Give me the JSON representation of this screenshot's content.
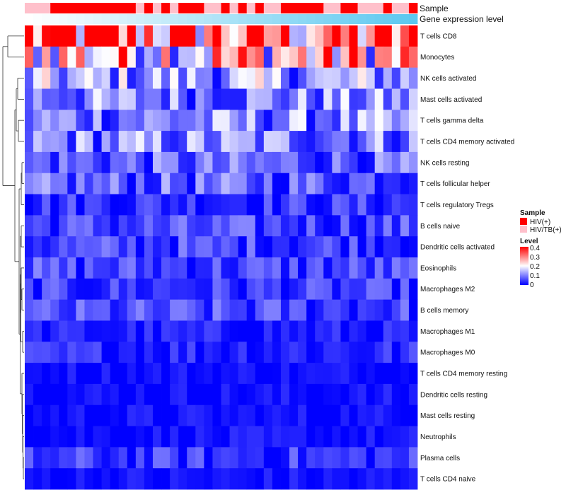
{
  "chart_data": {
    "type": "heatmap",
    "rows": [
      "T cells CD8",
      "Monocytes",
      "NK cells activated",
      "Mast cells activated",
      "T cells gamma delta",
      "T cells CD4 memory activated",
      "NK cells resting",
      "T cells follicular helper",
      "T cells regulatory  Tregs",
      "B cells naive",
      "Dendritic cells activated",
      "Eosinophils",
      "Macrophages M2",
      "B cells memory",
      "Macrophages M1",
      "Macrophages M0",
      "T cells CD4 memory resting",
      "Dendritic cells resting",
      "Mast cells resting",
      "Neutrophils",
      "Plasma cells",
      "T cells CD4 naive"
    ],
    "row_means": [
      0.32,
      0.24,
      0.12,
      0.1,
      0.1,
      0.1,
      0.07,
      0.07,
      0.04,
      0.05,
      0.05,
      0.05,
      0.04,
      0.05,
      0.02,
      0.03,
      0.01,
      0.01,
      0.01,
      0.01,
      0.04,
      0.01
    ],
    "n_samples": 46,
    "column_annotations": [
      {
        "name": "Sample",
        "values": [
          "HIV/TB(+)",
          "HIV/TB(+)",
          "HIV/TB(+)",
          "HIV(+)",
          "HIV(+)",
          "HIV(+)",
          "HIV(+)",
          "HIV(+)",
          "HIV(+)",
          "HIV(+)",
          "HIV(+)",
          "HIV(+)",
          "HIV(+)",
          "HIV/TB(+)",
          "HIV(+)",
          "HIV/TB(+)",
          "HIV(+)",
          "HIV/TB(+)",
          "HIV(+)",
          "HIV(+)",
          "HIV(+)",
          "HIV/TB(+)",
          "HIV/TB(+)",
          "HIV(+)",
          "HIV/TB(+)",
          "HIV(+)",
          "HIV/TB(+)",
          "HIV(+)",
          "HIV/TB(+)",
          "HIV/TB(+)",
          "HIV(+)",
          "HIV(+)",
          "HIV(+)",
          "HIV(+)",
          "HIV(+)",
          "HIV/TB(+)",
          "HIV/TB(+)",
          "HIV(+)",
          "HIV(+)",
          "HIV/TB(+)",
          "HIV/TB(+)",
          "HIV/TB(+)",
          "HIV(+)",
          "HIV/TB(+)",
          "HIV/TB(+)",
          "HIV(+)"
        ]
      },
      {
        "name": "Gene expression level",
        "type": "gradient",
        "from": "#ffffff",
        "to": "#5cc8f0"
      }
    ],
    "legends": [
      {
        "title": "Sample",
        "items": [
          {
            "label": "HIV(+)",
            "color": "#ff0000"
          },
          {
            "label": "HIV/TB(+)",
            "color": "#ffc0cb"
          }
        ]
      },
      {
        "title": "Level",
        "ticks": [
          "0.4",
          "0.3",
          "0.2",
          "0.1",
          "0"
        ],
        "range": [
          0,
          0.4
        ],
        "colors": [
          "#0000ff",
          "#ffffff",
          "#ff0000"
        ]
      }
    ],
    "dendrogram": "rows",
    "xlabel": "",
    "ylabel": ""
  }
}
